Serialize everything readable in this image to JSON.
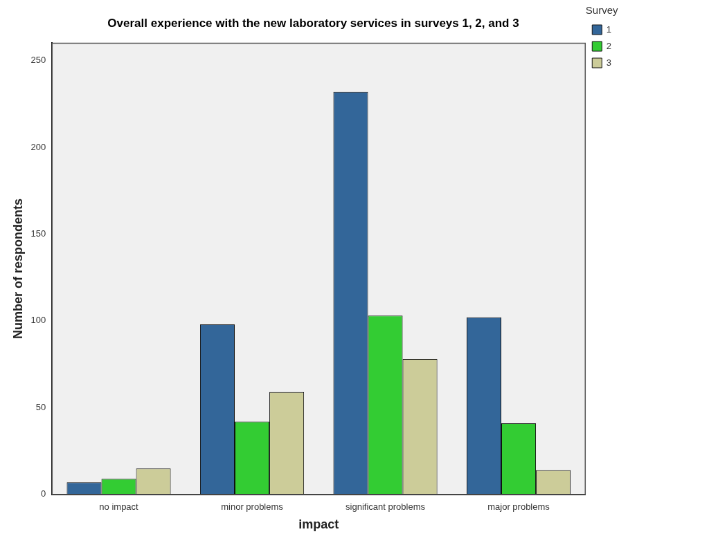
{
  "chart_data": {
    "type": "bar",
    "title": "Overall experience with the new laboratory services in surveys 1, 2, and 3",
    "xlabel": "impact",
    "ylabel": "Number of respondents",
    "legend_title": "Survey",
    "categories": [
      "no impact",
      "minor problems",
      "significant problems",
      "major problems"
    ],
    "series": [
      {
        "name": "1",
        "color": "#336699",
        "values": [
          7,
          98,
          232,
          102
        ]
      },
      {
        "name": "2",
        "color": "#33cc33",
        "values": [
          9,
          42,
          103,
          41
        ]
      },
      {
        "name": "3",
        "color": "#cccc99",
        "values": [
          15,
          59,
          78,
          14
        ]
      }
    ],
    "ylim": [
      0,
      260
    ],
    "yticks": [
      0,
      50,
      100,
      150,
      200,
      250
    ],
    "grid": false,
    "legend": "top right"
  }
}
